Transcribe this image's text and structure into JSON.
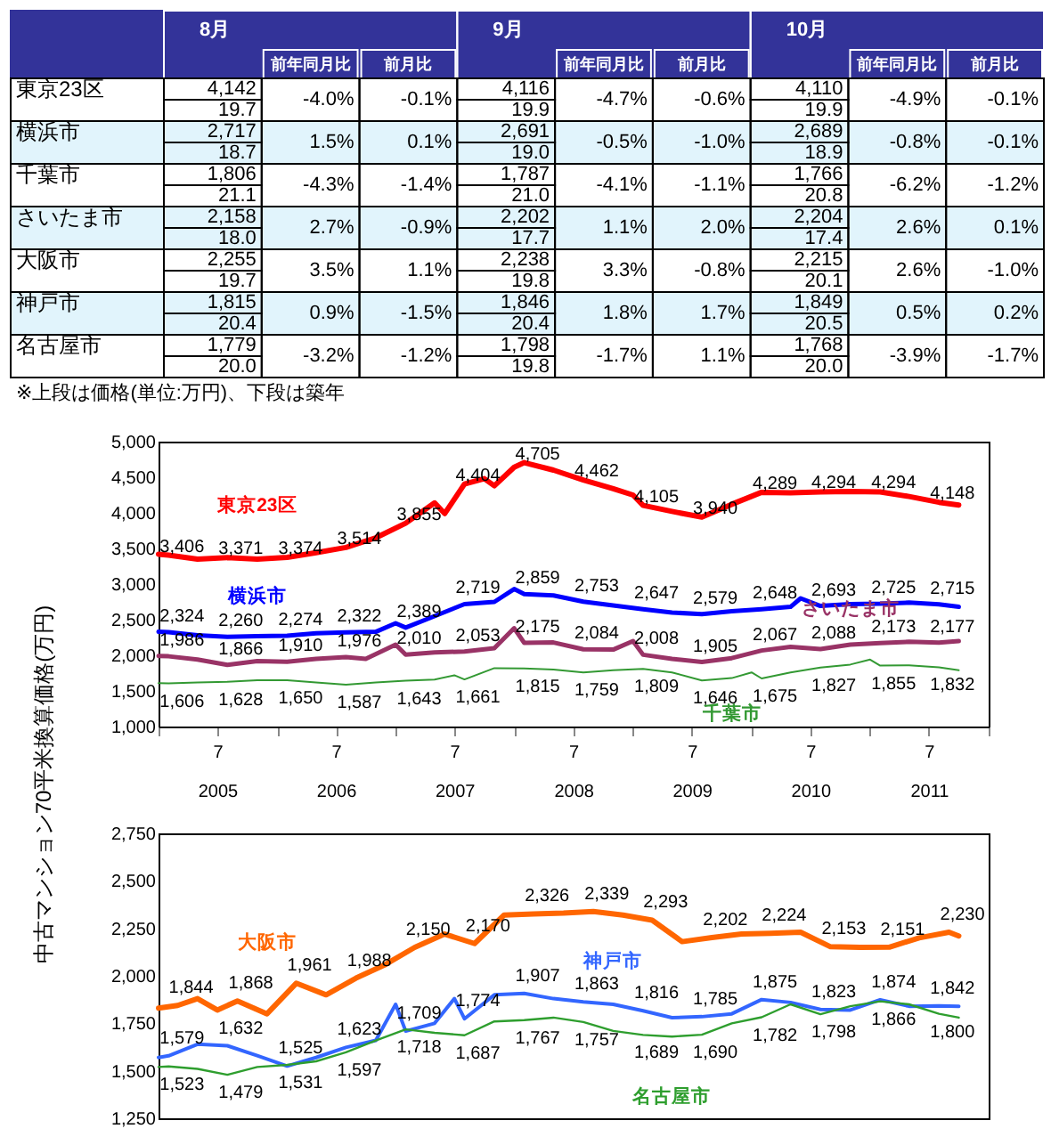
{
  "chart_data": [
    {
      "type": "other",
      "categories": [
        "8月",
        "前年同月比",
        "前月比",
        "9月",
        "前年同月比",
        "前月比",
        "10月",
        "前年同月比",
        "前月比"
      ],
      "y_categories": [
        "東京23区",
        null,
        "横浜市",
        null,
        "千葉市",
        null,
        "さいたま市",
        null,
        "大阪市",
        null,
        "神戸市",
        null,
        "名古屋市",
        null
      ],
      "cell_labels": [
        [
          "4,142",
          "-4.0%",
          "-0.1%",
          "4,116",
          "-4.7%",
          "-0.6%",
          "4,110",
          "-4.9%",
          "-0.1%"
        ],
        [
          "19.7",
          null,
          null,
          "19.9",
          null,
          null,
          "19.9",
          null,
          null
        ],
        [
          "2,717",
          "1.5%",
          "0.1%",
          "2,691",
          "-0.5%",
          "-1.0%",
          "2,689",
          "-0.8%",
          "-0.1%"
        ],
        [
          "18.7",
          null,
          null,
          "19.0",
          null,
          null,
          "18.9",
          null,
          null
        ],
        [
          "1,806",
          "-4.3%",
          "-1.4%",
          "1,787",
          "-4.1%",
          "-1.1%",
          "1,766",
          "-6.2%",
          "-1.2%"
        ],
        [
          "21.1",
          null,
          null,
          "21.0",
          null,
          null,
          "20.8",
          null,
          null
        ],
        [
          "2,158",
          "2.7%",
          "-0.9%",
          "2,202",
          "1.1%",
          "2.0%",
          "2,204",
          "2.6%",
          "0.1%"
        ],
        [
          "18.0",
          null,
          null,
          "17.7",
          null,
          null,
          "17.4",
          null,
          null
        ],
        [
          "2,255",
          "3.5%",
          "1.1%",
          "2,238",
          "3.3%",
          "-0.8%",
          "2,215",
          "2.6%",
          "-1.0%"
        ],
        [
          "19.7",
          null,
          null,
          "19.8",
          null,
          null,
          "20.1",
          null,
          null
        ],
        [
          "1,815",
          "0.9%",
          "-1.5%",
          "1,846",
          "1.8%",
          "1.7%",
          "1,849",
          "0.5%",
          "0.2%"
        ],
        [
          "20.4",
          null,
          null,
          "20.4",
          null,
          null,
          "20.5",
          null,
          null
        ],
        [
          "1,779",
          "-3.2%",
          "-1.2%",
          "1,798",
          "-1.7%",
          "1.1%",
          "1,768",
          "-3.9%",
          "-1.7%"
        ],
        [
          "20.0",
          null,
          null,
          "19.8",
          null,
          null,
          "20.0",
          null,
          null
        ]
      ],
      "annotations": [
        "※上段は価格(単位:万円)、下段は築年"
      ]
    },
    {
      "type": "line",
      "ylabel": "中古マンション70平米換算価格(万円)",
      "xlim": [
        "2005-01",
        "2012-01"
      ],
      "xticks": [
        {
          "value": "2005-01",
          "label": null
        },
        {
          "value": "2005-07",
          "label": "7"
        },
        {
          "value": "2006-01",
          "label": null
        },
        {
          "value": "2006-07",
          "label": "7"
        },
        {
          "value": "2007-01",
          "label": null
        },
        {
          "value": "2007-07",
          "label": "7"
        },
        {
          "value": "2008-01",
          "label": null
        },
        {
          "value": "2008-07",
          "label": "7"
        },
        {
          "value": "2009-01",
          "label": null
        },
        {
          "value": "2009-07",
          "label": "7"
        },
        {
          "value": "2010-01",
          "label": null
        },
        {
          "value": "2010-07",
          "label": "7"
        },
        {
          "value": "2011-01",
          "label": null
        },
        {
          "value": "2011-07",
          "label": "7"
        },
        {
          "value": "2012-01",
          "label": null
        }
      ],
      "x2lim": [
        "2005-01",
        "2012-01"
      ],
      "x2ticks": [
        {
          "value": "2005-07",
          "label": "2005"
        },
        {
          "value": "2006-07",
          "label": "2006"
        },
        {
          "value": "2007-07",
          "label": "2007"
        },
        {
          "value": "2008-07",
          "label": "2008"
        },
        {
          "value": "2009-07",
          "label": "2009"
        },
        {
          "value": "2010-07",
          "label": "2010"
        },
        {
          "value": "2011-07",
          "label": "2011"
        }
      ],
      "ylim": [
        1000,
        5000
      ],
      "yticks": [
        {
          "value": 1000,
          "label": "1,000"
        },
        {
          "value": 1500,
          "label": "1,500"
        },
        {
          "value": 2000,
          "label": "2,000"
        },
        {
          "value": 2500,
          "label": "2,500"
        },
        {
          "value": 3000,
          "label": "3,000"
        },
        {
          "value": 3500,
          "label": "3,500"
        },
        {
          "value": 4000,
          "label": "4,000"
        },
        {
          "value": 4500,
          "label": "4,500"
        },
        {
          "value": 5000,
          "label": "5,000"
        }
      ],
      "series": [
        {
          "name": "東京23区",
          "color": "#ff0000",
          "x": [
            "2005-01",
            "2005-02",
            "2005-05",
            "2005-08",
            "2005-11",
            "2006-02",
            "2006-05",
            "2006-08",
            "2006-11",
            "2007-02",
            "2007-05",
            "2007-06",
            "2007-08",
            "2007-10",
            "2007-11",
            "2008-01",
            "2008-02",
            "2008-05",
            "2008-08",
            "2008-11",
            "2009-01",
            "2009-02",
            "2009-05",
            "2009-08",
            "2009-11",
            "2010-02",
            "2010-05",
            "2010-08",
            "2010-11",
            "2011-02",
            "2011-05",
            "2011-08",
            "2011-10"
          ],
          "values": [
            3420,
            3406,
            3350,
            3371,
            3350,
            3374,
            3440,
            3514,
            3650,
            3855,
            4140,
            3990,
            4404,
            4480,
            4380,
            4640,
            4705,
            4600,
            4462,
            4340,
            4250,
            4105,
            4020,
            3940,
            4120,
            4289,
            4280,
            4294,
            4300,
            4294,
            4230,
            4148,
            4110
          ],
          "value_labels": [
            null,
            "3,406",
            null,
            "3,371",
            null,
            "3,374",
            null,
            "3,514",
            null,
            "3,855",
            null,
            null,
            "4,404",
            null,
            null,
            null,
            "4,705",
            null,
            "4,462",
            null,
            null,
            "4,105",
            null,
            "3,940",
            null,
            "4,289",
            null,
            "4,294",
            null,
            "4,294",
            null,
            "4,148",
            null
          ]
        },
        {
          "name": "横浜市",
          "color": "#0000ff",
          "x": [
            "2005-01",
            "2005-02",
            "2005-05",
            "2005-08",
            "2005-11",
            "2006-02",
            "2006-05",
            "2006-08",
            "2006-11",
            "2007-01",
            "2007-02",
            "2007-05",
            "2007-08",
            "2007-11",
            "2008-01",
            "2008-02",
            "2008-05",
            "2008-08",
            "2008-11",
            "2009-02",
            "2009-05",
            "2009-08",
            "2009-11",
            "2010-02",
            "2010-05",
            "2010-06",
            "2010-08",
            "2010-11",
            "2011-02",
            "2011-05",
            "2011-08",
            "2011-10"
          ],
          "values": [
            2330,
            2324,
            2280,
            2260,
            2270,
            2274,
            2310,
            2322,
            2330,
            2450,
            2389,
            2550,
            2719,
            2750,
            2930,
            2859,
            2840,
            2753,
            2700,
            2647,
            2600,
            2579,
            2620,
            2648,
            2680,
            2800,
            2693,
            2720,
            2725,
            2740,
            2715,
            2680
          ],
          "value_labels": [
            null,
            "2,324",
            null,
            "2,260",
            null,
            "2,274",
            null,
            "2,322",
            null,
            null,
            "2,389",
            null,
            "2,719",
            null,
            null,
            "2,859",
            null,
            "2,753",
            null,
            "2,647",
            null,
            "2,579",
            null,
            "2,648",
            null,
            null,
            "2,693",
            null,
            "2,725",
            null,
            "2,715",
            null
          ]
        },
        {
          "name": "さいたま市",
          "color": "#993366",
          "x": [
            "2005-01",
            "2005-02",
            "2005-05",
            "2005-08",
            "2005-11",
            "2006-02",
            "2006-05",
            "2006-08",
            "2006-10",
            "2007-01",
            "2007-02",
            "2007-05",
            "2007-08",
            "2007-11",
            "2008-01",
            "2008-02",
            "2008-05",
            "2008-08",
            "2008-11",
            "2009-01",
            "2009-02",
            "2009-05",
            "2009-08",
            "2009-11",
            "2010-02",
            "2010-05",
            "2010-08",
            "2010-11",
            "2011-02",
            "2011-05",
            "2011-08",
            "2011-10"
          ],
          "values": [
            1990,
            1986,
            1940,
            1866,
            1920,
            1910,
            1950,
            1976,
            1950,
            2150,
            2010,
            2040,
            2053,
            2100,
            2380,
            2175,
            2180,
            2084,
            2080,
            2200,
            2008,
            1950,
            1905,
            1960,
            2067,
            2120,
            2088,
            2150,
            2173,
            2190,
            2177,
            2200
          ],
          "value_labels": [
            null,
            "1,986",
            null,
            "1,866",
            null,
            "1,910",
            null,
            "1,976",
            null,
            null,
            "2,010",
            null,
            "2,053",
            null,
            null,
            "2,175",
            null,
            "2,084",
            null,
            null,
            "2,008",
            null,
            "1,905",
            null,
            "2,067",
            null,
            "2,088",
            null,
            "2,173",
            null,
            "2,177",
            null
          ]
        },
        {
          "name": "千葉市",
          "color": "#339933",
          "x": [
            "2005-01",
            "2005-02",
            "2005-05",
            "2005-08",
            "2005-11",
            "2006-02",
            "2006-05",
            "2006-08",
            "2006-11",
            "2007-02",
            "2007-05",
            "2007-07",
            "2007-08",
            "2007-11",
            "2008-02",
            "2008-05",
            "2008-08",
            "2008-11",
            "2009-02",
            "2009-05",
            "2009-08",
            "2009-11",
            "2010-01",
            "2010-02",
            "2010-05",
            "2010-08",
            "2010-11",
            "2011-01",
            "2011-02",
            "2011-05",
            "2011-08",
            "2011-10"
          ],
          "values": [
            1610,
            1606,
            1620,
            1628,
            1650,
            1650,
            1620,
            1587,
            1620,
            1643,
            1660,
            1720,
            1661,
            1820,
            1815,
            1800,
            1759,
            1790,
            1809,
            1760,
            1646,
            1680,
            1760,
            1675,
            1760,
            1827,
            1870,
            1940,
            1855,
            1860,
            1832,
            1790
          ],
          "value_labels": [
            null,
            "1,606",
            null,
            "1,628",
            null,
            "1,650",
            null,
            "1,587",
            null,
            "1,643",
            null,
            null,
            "1,661",
            null,
            "1,815",
            null,
            "1,759",
            null,
            "1,809",
            null,
            "1,646",
            null,
            null,
            "1,675",
            null,
            "1,827",
            null,
            null,
            "1,855",
            null,
            "1,832",
            null
          ]
        }
      ]
    },
    {
      "type": "line",
      "xlim": [
        "2005-01",
        "2012-01"
      ],
      "tick_labels": "y",
      "ylim": [
        1250,
        2750
      ],
      "yticks": [
        {
          "value": 1250,
          "label": "1,250"
        },
        {
          "value": 1500,
          "label": "1,500"
        },
        {
          "value": 1750,
          "label": "1,750"
        },
        {
          "value": 2000,
          "label": "2,000"
        },
        {
          "value": 2250,
          "label": "2,250"
        },
        {
          "value": 2500,
          "label": "2,500"
        },
        {
          "value": 2750,
          "label": "2,750"
        }
      ],
      "series": [
        {
          "name": "大阪市",
          "color": "#ff6600",
          "x": [
            "2005-01",
            "2005-03",
            "2005-05",
            "2005-07",
            "2005-09",
            "2005-12",
            "2006-03",
            "2006-06",
            "2006-09",
            "2006-12",
            "2007-03",
            "2007-06",
            "2007-09",
            "2007-12",
            "2008-03",
            "2008-06",
            "2008-09",
            "2008-12",
            "2009-03",
            "2009-06",
            "2009-09",
            "2009-12",
            "2010-03",
            "2010-06",
            "2010-09",
            "2010-12",
            "2011-03",
            "2011-06",
            "2011-09",
            "2011-10"
          ],
          "values": [
            1830,
            1844,
            1880,
            1820,
            1868,
            1800,
            1961,
            1900,
            1988,
            2060,
            2150,
            2220,
            2170,
            2320,
            2326,
            2330,
            2339,
            2320,
            2293,
            2180,
            2202,
            2220,
            2224,
            2230,
            2153,
            2150,
            2151,
            2200,
            2230,
            2210
          ],
          "value_labels": [
            null,
            "1,844",
            null,
            null,
            "1,868",
            null,
            "1,961",
            null,
            "1,988",
            null,
            "2,150",
            null,
            "2,170",
            null,
            "2,326",
            null,
            "2,339",
            null,
            "2,293",
            null,
            "2,202",
            null,
            "2,224",
            null,
            "2,153",
            null,
            "2,151",
            null,
            "2,230",
            null
          ]
        },
        {
          "name": "神戸市",
          "color": "#3366ff",
          "x": [
            "2005-01",
            "2005-02",
            "2005-05",
            "2005-08",
            "2005-11",
            "2006-02",
            "2006-05",
            "2006-08",
            "2006-11",
            "2007-01",
            "2007-02",
            "2007-05",
            "2007-07",
            "2007-08",
            "2007-11",
            "2008-02",
            "2008-05",
            "2008-08",
            "2008-11",
            "2009-02",
            "2009-05",
            "2009-08",
            "2009-11",
            "2010-02",
            "2010-05",
            "2010-08",
            "2010-11",
            "2011-02",
            "2011-05",
            "2011-08",
            "2011-10"
          ],
          "values": [
            1570,
            1579,
            1640,
            1632,
            1580,
            1525,
            1570,
            1623,
            1660,
            1850,
            1709,
            1750,
            1880,
            1774,
            1900,
            1907,
            1880,
            1863,
            1850,
            1816,
            1780,
            1785,
            1800,
            1875,
            1860,
            1823,
            1820,
            1874,
            1840,
            1842,
            1840
          ],
          "value_labels": [
            null,
            "1,579",
            null,
            "1,632",
            null,
            "1,525",
            null,
            "1,623",
            null,
            null,
            "1,709",
            null,
            null,
            "1,774",
            null,
            "1,907",
            null,
            "1,863",
            null,
            "1,816",
            null,
            "1,785",
            null,
            "1,875",
            null,
            "1,823",
            null,
            "1,874",
            null,
            "1,842",
            null
          ]
        },
        {
          "name": "名古屋市",
          "color": "#2e9e2e",
          "x": [
            "2005-01",
            "2005-02",
            "2005-05",
            "2005-08",
            "2005-11",
            "2006-02",
            "2006-05",
            "2006-08",
            "2006-11",
            "2007-02",
            "2007-05",
            "2007-08",
            "2007-11",
            "2008-02",
            "2008-05",
            "2008-08",
            "2008-11",
            "2009-02",
            "2009-05",
            "2009-08",
            "2009-11",
            "2010-02",
            "2010-05",
            "2010-08",
            "2010-11",
            "2011-02",
            "2011-05",
            "2011-08",
            "2011-10"
          ],
          "values": [
            1520,
            1523,
            1510,
            1479,
            1520,
            1531,
            1550,
            1597,
            1660,
            1718,
            1700,
            1687,
            1760,
            1767,
            1780,
            1757,
            1710,
            1689,
            1680,
            1690,
            1750,
            1782,
            1850,
            1798,
            1840,
            1866,
            1850,
            1800,
            1780
          ],
          "value_labels": [
            null,
            "1,523",
            null,
            "1,479",
            null,
            "1,531",
            null,
            "1,597",
            null,
            "1,718",
            null,
            "1,687",
            null,
            "1,767",
            null,
            "1,757",
            null,
            "1,689",
            null,
            "1,690",
            null,
            "1,782",
            null,
            "1,798",
            null,
            "1,866",
            null,
            "1,800",
            null
          ]
        }
      ]
    }
  ]
}
